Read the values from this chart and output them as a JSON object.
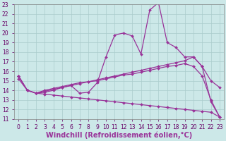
{
  "xlabel": "Windchill (Refroidissement éolien,°C)",
  "ylabel": "",
  "xlim": [
    -0.5,
    23.5
  ],
  "ylim": [
    11,
    23
  ],
  "xticks": [
    0,
    1,
    2,
    3,
    4,
    5,
    6,
    7,
    8,
    9,
    10,
    11,
    12,
    13,
    14,
    15,
    16,
    17,
    18,
    19,
    20,
    21,
    22,
    23
  ],
  "yticks": [
    11,
    12,
    13,
    14,
    15,
    16,
    17,
    18,
    19,
    20,
    21,
    22,
    23
  ],
  "background_color": "#cce8e8",
  "grid_color": "#aacccc",
  "line_color": "#993399",
  "lines": [
    {
      "x": [
        0,
        1,
        2,
        3,
        4,
        5,
        6,
        7,
        8,
        9,
        10,
        11,
        12,
        13,
        14,
        15,
        16,
        17,
        18,
        19,
        20,
        21,
        22,
        23
      ],
      "y": [
        15.5,
        14.0,
        13.7,
        13.8,
        14.0,
        14.3,
        14.5,
        13.7,
        13.8,
        14.8,
        17.5,
        19.8,
        20.0,
        19.7,
        17.8,
        22.4,
        23.2,
        19.0,
        18.5,
        17.5,
        17.5,
        16.5,
        12.8,
        11.2
      ]
    },
    {
      "x": [
        0,
        1,
        2,
        3,
        4,
        5,
        6,
        7,
        8,
        9,
        10,
        11,
        12,
        13,
        14,
        15,
        16,
        17,
        18,
        19,
        20,
        21,
        22,
        23
      ],
      "y": [
        15.5,
        14.0,
        13.7,
        14.0,
        14.2,
        14.4,
        14.6,
        14.8,
        14.9,
        15.1,
        15.3,
        15.5,
        15.7,
        15.9,
        16.1,
        16.3,
        16.5,
        16.7,
        16.9,
        17.1,
        17.5,
        16.5,
        15.0,
        14.3
      ]
    },
    {
      "x": [
        0,
        1,
        2,
        3,
        4,
        5,
        6,
        7,
        8,
        9,
        10,
        11,
        12,
        13,
        14,
        15,
        16,
        17,
        18,
        19,
        20,
        21,
        22,
        23
      ],
      "y": [
        15.5,
        14.0,
        13.7,
        13.9,
        14.1,
        14.3,
        14.5,
        14.7,
        14.9,
        15.0,
        15.2,
        15.4,
        15.6,
        15.7,
        15.9,
        16.1,
        16.3,
        16.5,
        16.6,
        16.8,
        16.5,
        15.5,
        13.0,
        11.2
      ]
    },
    {
      "x": [
        0,
        1,
        2,
        3,
        4,
        5,
        6,
        7,
        8,
        9,
        10,
        11,
        12,
        13,
        14,
        15,
        16,
        17,
        18,
        19,
        20,
        21,
        22,
        23
      ],
      "y": [
        15.2,
        14.0,
        13.7,
        13.6,
        13.5,
        13.4,
        13.3,
        13.2,
        13.1,
        13.0,
        12.9,
        12.8,
        12.7,
        12.6,
        12.5,
        12.4,
        12.3,
        12.2,
        12.1,
        12.0,
        11.9,
        11.8,
        11.7,
        11.2
      ]
    }
  ],
  "marker": "D",
  "markersize": 2.0,
  "linewidth": 0.9,
  "tick_fontsize": 5.5,
  "label_fontsize": 7
}
